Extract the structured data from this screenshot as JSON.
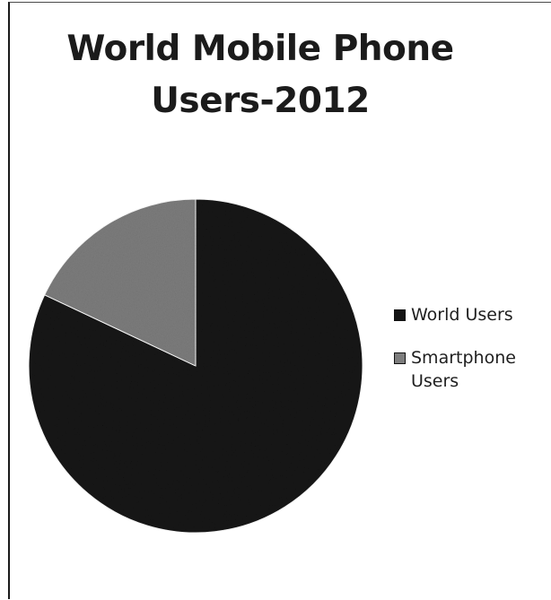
{
  "chart_data": {
    "type": "pie",
    "title_lines": [
      "World Mobile Phone",
      "Users-2012"
    ],
    "categories": [
      "World Users",
      "Smartphone Users"
    ],
    "values": [
      82,
      18
    ],
    "legend_labels": [
      [
        "World Users"
      ],
      [
        "Smartphone",
        "Users"
      ]
    ],
    "colors": [
      "#141414",
      "#7d7d7d"
    ],
    "legend": "right"
  }
}
